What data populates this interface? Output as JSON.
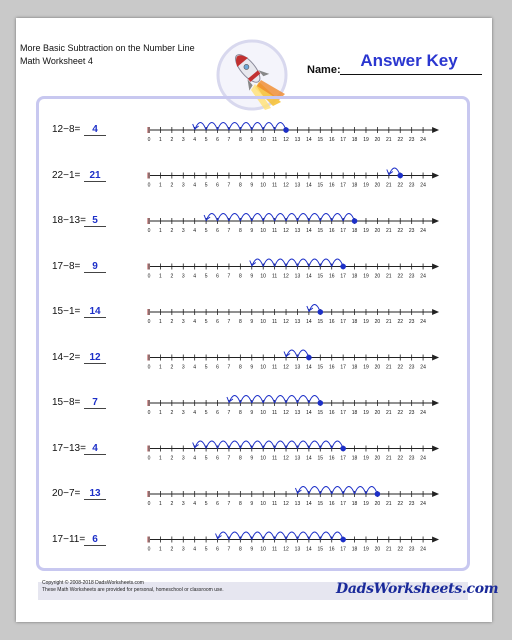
{
  "header": {
    "title_line1": "More Basic Subtraction on the Number Line",
    "title_line2": "Math Worksheet 4",
    "name_label": "Name:",
    "answer_key": "Answer Key"
  },
  "number_line": {
    "min": 0,
    "max": 24,
    "tick_labels": [
      "0",
      "1",
      "2",
      "3",
      "4",
      "5",
      "6",
      "7",
      "8",
      "9",
      "10",
      "11",
      "12",
      "13",
      "14",
      "15",
      "16",
      "17",
      "18",
      "19",
      "20",
      "21",
      "22",
      "23",
      "24"
    ]
  },
  "problems": [
    {
      "expression": "12−8=",
      "start": 12,
      "subtract": 8,
      "answer": "4"
    },
    {
      "expression": "22−1=",
      "start": 22,
      "subtract": 1,
      "answer": "21"
    },
    {
      "expression": "18−13=",
      "start": 18,
      "subtract": 13,
      "answer": "5"
    },
    {
      "expression": "17−8=",
      "start": 17,
      "subtract": 8,
      "answer": "9"
    },
    {
      "expression": "15−1=",
      "start": 15,
      "subtract": 1,
      "answer": "14"
    },
    {
      "expression": "14−2=",
      "start": 14,
      "subtract": 2,
      "answer": "12"
    },
    {
      "expression": "15−8=",
      "start": 15,
      "subtract": 8,
      "answer": "7"
    },
    {
      "expression": "17−13=",
      "start": 17,
      "subtract": 13,
      "answer": "4"
    },
    {
      "expression": "20−7=",
      "start": 20,
      "subtract": 7,
      "answer": "13"
    },
    {
      "expression": "17−11=",
      "start": 17,
      "subtract": 11,
      "answer": "6"
    }
  ],
  "footer": {
    "copyright": "Copyright © 2008-2018 DadsWorksheets.com",
    "notice": "These Math Worksheets are provided for personal, homeschool or classroom use.",
    "brand": "DadsWorksheets.com"
  },
  "colors": {
    "ink": "#1c2fc8",
    "panel_border": "#c8c8f0",
    "start_tick": "#d9a0a0"
  }
}
